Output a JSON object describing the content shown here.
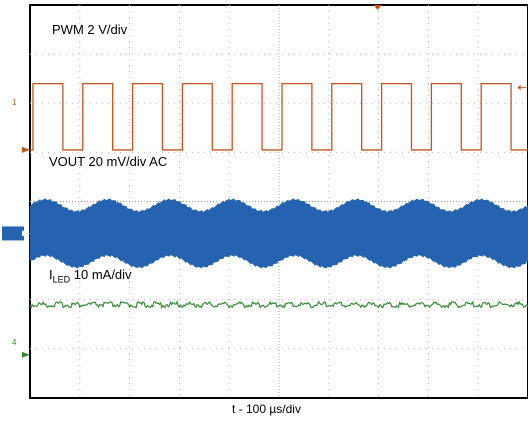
{
  "chart_data": {
    "type": "line",
    "title": "",
    "xlabel": "t - 100 µs/div",
    "ylabel": "",
    "divisions": {
      "x": 10,
      "y": 8
    },
    "grid": true,
    "channels": [
      {
        "name": "PWM 2 V/div",
        "marker": "1",
        "color": "#c8531f",
        "kind": "square-wave",
        "cycles": 10,
        "duty": 0.6,
        "high_div": 6.4,
        "low_div": 5.05,
        "ground_div": 5.05
      },
      {
        "name": "VOUT 20 mV/div AC",
        "marker": "2",
        "color": "#2563b0",
        "kind": "ripple-band",
        "center_div": 3.35,
        "ripple_amplitude_div": 0.55,
        "envelope_cycles": 8,
        "envelope_variation_div": 0.12
      },
      {
        "name_main": "I",
        "name_sub": "LED",
        "name_rest": " 10 mA/div",
        "marker": "4",
        "color": "#3a8a3a",
        "kind": "flat-noise",
        "level_div": 1.9,
        "noise_div": 0.03,
        "ground_div": 0.88
      }
    ]
  }
}
